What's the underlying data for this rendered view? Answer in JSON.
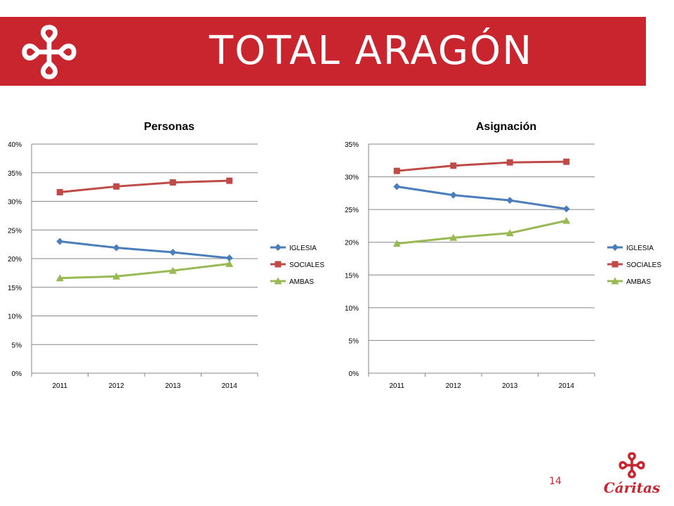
{
  "header": {
    "title": "TOTAL  ARAGÓN",
    "logo_icon": "caritas-cross-icon",
    "band_color": "#c9252f"
  },
  "footer": {
    "page_number": "14",
    "brand_name": "Cáritas",
    "brand_icon": "caritas-cross-icon"
  },
  "colors": {
    "IGLESIA": "#4a7ebb",
    "SOCIALES": "#be4b48",
    "AMBAS": "#98b954"
  },
  "chart_data": [
    {
      "type": "line",
      "title": "Personas",
      "categories": [
        "2011",
        "2012",
        "2013",
        "2014"
      ],
      "series": [
        {
          "name": "IGLESIA",
          "marker": "diamond",
          "values": [
            23.0,
            21.9,
            21.1,
            20.1
          ]
        },
        {
          "name": "SOCIALES",
          "marker": "square",
          "values": [
            31.6,
            32.6,
            33.3,
            33.6
          ]
        },
        {
          "name": "AMBAS",
          "marker": "triangle",
          "values": [
            16.6,
            16.9,
            17.9,
            19.1
          ]
        }
      ],
      "ylim": [
        0,
        40
      ],
      "ytick_labels": [
        "0%",
        "5%",
        "10%",
        "15%",
        "20%",
        "25%",
        "30%",
        "35%",
        "40%"
      ],
      "grid": true,
      "legend": "right"
    },
    {
      "type": "line",
      "title": "Asignación",
      "categories": [
        "2011",
        "2012",
        "2013",
        "2014"
      ],
      "series": [
        {
          "name": "IGLESIA",
          "marker": "diamond",
          "values": [
            28.5,
            27.2,
            26.4,
            25.1
          ]
        },
        {
          "name": "SOCIALES",
          "marker": "square",
          "values": [
            30.9,
            31.7,
            32.2,
            32.3
          ]
        },
        {
          "name": "AMBAS",
          "marker": "triangle",
          "values": [
            19.8,
            20.7,
            21.4,
            23.3
          ]
        }
      ],
      "ylim": [
        0,
        35
      ],
      "ytick_labels": [
        "0%",
        "5%",
        "10%",
        "15%",
        "20%",
        "25%",
        "30%",
        "35%"
      ],
      "grid": true,
      "legend": "right"
    }
  ]
}
